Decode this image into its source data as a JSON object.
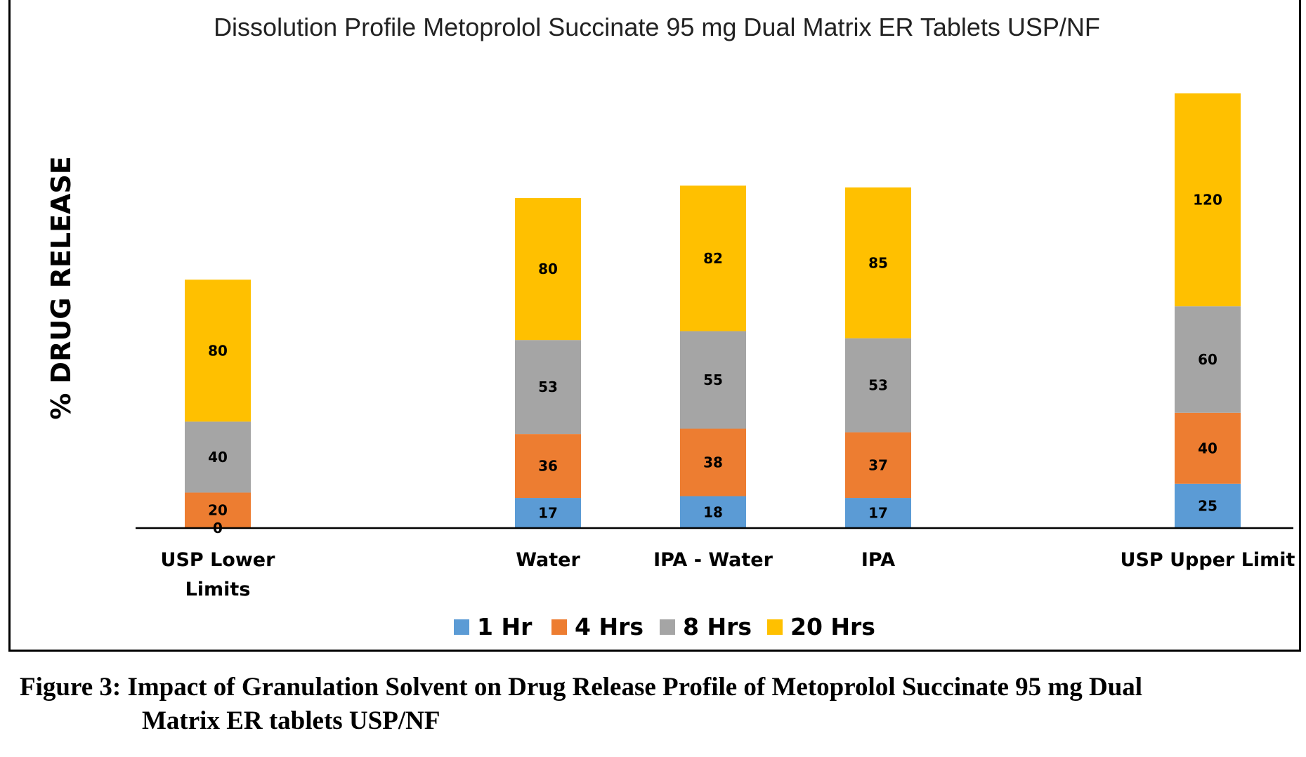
{
  "chart_data": {
    "type": "bar",
    "stacked": true,
    "title": "Dissolution Profile Metoprolol Succinate 95 mg Dual Matrix ER Tablets USP/NF",
    "ylabel": "% DRUG RELEASE",
    "xlabel": "",
    "categories": [
      {
        "line1": "USP Lower",
        "line2": "Limits"
      },
      {
        "line1": "",
        "line2": ""
      },
      {
        "line1": "Water",
        "line2": ""
      },
      {
        "line1": "IPA - Water",
        "line2": ""
      },
      {
        "line1": "IPA",
        "line2": ""
      },
      {
        "line1": "",
        "line2": ""
      },
      {
        "line1": "USP Upper Limit",
        "line2": ""
      }
    ],
    "series": [
      {
        "name": "1 Hr",
        "color": "#5B9BD5",
        "values": [
          0,
          null,
          17,
          18,
          17,
          null,
          25
        ]
      },
      {
        "name": "4 Hrs",
        "color": "#ED7D31",
        "values": [
          20,
          null,
          36,
          38,
          37,
          null,
          40
        ]
      },
      {
        "name": "8 Hrs",
        "color": "#A5A5A5",
        "values": [
          40,
          null,
          53,
          55,
          53,
          null,
          60
        ]
      },
      {
        "name": "20 Hrs",
        "color": "#FFC000",
        "values": [
          80,
          null,
          80,
          82,
          85,
          null,
          120
        ]
      }
    ],
    "data_labels": [
      [
        "0",
        "",
        "17",
        "18",
        "17",
        "",
        "25"
      ],
      [
        "20",
        "",
        "36",
        "38",
        "37",
        "",
        "40"
      ],
      [
        "40",
        "",
        "53",
        "55",
        "53",
        "",
        "60"
      ],
      [
        "80",
        "",
        "80",
        "82",
        "85",
        "",
        "120"
      ]
    ],
    "ylim": [
      0,
      245
    ],
    "grid": false,
    "legend_position": "bottom"
  },
  "figure_caption": {
    "line1": "Figure 3: Impact of Granulation Solvent on Drug Release Profile of Metoprolol Succinate 95 mg Dual",
    "line2": "Matrix ER tablets USP/NF"
  }
}
